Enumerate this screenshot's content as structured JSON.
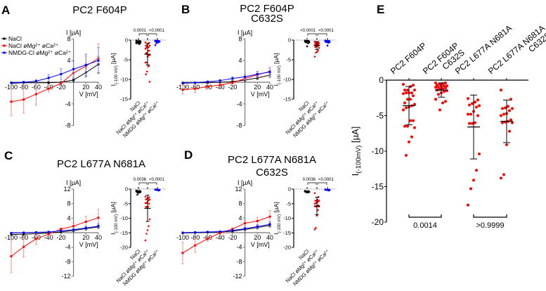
{
  "figure": {
    "panel_labels": [
      "A",
      "B",
      "C",
      "D",
      "E"
    ]
  },
  "legend": {
    "items": [
      {
        "label": "NaCl",
        "color": "#000000"
      },
      {
        "label": "NaCl øMg²⁺ øCa²⁺",
        "color": "#ff0000"
      },
      {
        "label": "NMDG-Cl øMg²⁺ øCa²⁺",
        "color": "#0000ff"
      }
    ]
  },
  "chart_data": [
    {
      "panel": "A",
      "type": "line",
      "title": [
        "PC2 F604P"
      ],
      "xlabel": "V [mV]",
      "ylabel": "I [µA]",
      "x": [
        -100,
        -80,
        -60,
        -40,
        -20,
        0,
        20,
        40
      ],
      "xlim": [
        -100,
        40
      ],
      "ylim": [
        -8,
        8
      ],
      "xticks": [
        -100,
        -80,
        -60,
        -40,
        -20,
        20,
        40
      ],
      "yticks": [
        8,
        4,
        -4,
        -8
      ],
      "series": [
        {
          "color": "#000000",
          "values": [
            -0.2,
            -0.1,
            -0.1,
            -0.1,
            0,
            0.4,
            1.8,
            3.3
          ],
          "err": [
            0.1,
            0.1,
            0.1,
            0.1,
            0.1,
            0.3,
            0.8,
            1.5
          ]
        },
        {
          "color": "#ff0000",
          "values": [
            -3.6,
            -3.2,
            -2.2,
            -1.2,
            -0.2,
            1.7,
            3.0,
            4.4
          ],
          "err": [
            2.6,
            2.5,
            2.0,
            0.6,
            0.2,
            1.0,
            1.8,
            2.7
          ]
        },
        {
          "color": "#0000ff",
          "values": [
            -0.1,
            0,
            0.2,
            0.8,
            1.5,
            2.4,
            3.2,
            4.0
          ],
          "err": [
            0.2,
            0.2,
            0.3,
            0.6,
            1.0,
            1.5,
            2.0,
            2.4
          ]
        }
      ]
    },
    {
      "panel": "A",
      "type": "scatter",
      "ylabel": "I",
      "ylabel_sub": "(-100 mV)",
      "ylabel_unit": " [µA]",
      "categories": [
        "NaCl",
        "NaCl øMg²⁺ øCa²⁺",
        "NMDG øMg²⁺ øCa²⁺"
      ],
      "ylim": [
        -15,
        0
      ],
      "yticks": [
        0,
        -5,
        -10,
        -15
      ],
      "pvalues": [
        "0.0001",
        "<0.0001"
      ],
      "groups": [
        {
          "color": "#000000",
          "mean": -0.5,
          "sd": 0.3,
          "points": [
            -0.1,
            -0.2,
            -0.3,
            -0.3,
            -0.4,
            -0.5,
            -0.5,
            -0.6,
            -0.7,
            -0.8,
            -0.9,
            -1.0
          ]
        },
        {
          "color": "#ff0000",
          "mean": -3.6,
          "sd": 2.7,
          "points": [
            -0.6,
            -0.7,
            -0.9,
            -1.4,
            -1.4,
            -1.4,
            -1.8,
            -1.8,
            -1.9,
            -2.2,
            -2.7,
            -2.7,
            -3.2,
            -3.4,
            -3.8,
            -3.9,
            -4.2,
            -5.7,
            -5.7,
            -6.5,
            -6.7,
            -8.0,
            -8.7,
            -10.6
          ]
        },
        {
          "color": "#0000ff",
          "mean": -0.4,
          "sd": 0.3,
          "points": [
            -0.1,
            -0.2,
            -0.2,
            -0.3,
            -0.3,
            -0.4,
            -0.5,
            -0.6,
            -0.8,
            -1.3
          ]
        }
      ]
    },
    {
      "panel": "B",
      "type": "line",
      "title": [
        "PC2 F604P",
        "C632S"
      ],
      "xlabel": "V [mV]",
      "ylabel": "I [µA]",
      "x": [
        -100,
        -80,
        -60,
        -40,
        -20,
        0,
        20,
        40
      ],
      "xlim": [
        -100,
        40
      ],
      "ylim": [
        -8,
        8
      ],
      "xticks": [
        -100,
        -80,
        -60,
        -40,
        -20,
        20,
        40
      ],
      "yticks": [
        8,
        4,
        -4,
        -8
      ],
      "series": [
        {
          "color": "#000000",
          "values": [
            -0.2,
            -0.1,
            -0.1,
            0,
            0.1,
            0.4,
            0.8,
            1.3
          ],
          "err": [
            0.1,
            0.1,
            0.1,
            0.1,
            0.1,
            0.2,
            0.3,
            0.4
          ]
        },
        {
          "color": "#ff0000",
          "values": [
            -1.4,
            -1.2,
            -0.8,
            -0.5,
            -0.1,
            0.7,
            1.4,
            2.0
          ],
          "err": [
            0.8,
            0.7,
            0.5,
            0.3,
            0.1,
            0.3,
            0.5,
            0.8
          ]
        },
        {
          "color": "#0000ff",
          "values": [
            -0.1,
            -0.1,
            0.1,
            0.3,
            0.7,
            1.0,
            1.5,
            1.9
          ],
          "err": [
            0.1,
            0.1,
            0.1,
            0.2,
            0.3,
            0.4,
            0.5,
            0.6
          ]
        }
      ]
    },
    {
      "panel": "B",
      "type": "scatter",
      "ylabel": "I",
      "ylabel_sub": "(-100 mV)",
      "ylabel_unit": " [µA]",
      "categories": [
        "NaCl",
        "NaCl øMg²⁺ øCa²⁺",
        "NMDG øMg²⁺ øCa²⁺"
      ],
      "ylim": [
        -15,
        0
      ],
      "yticks": [
        0,
        -5,
        -10,
        -15
      ],
      "pvalues": [
        "<0.0001",
        "<0.0001"
      ],
      "groups": [
        {
          "color": "#000000",
          "mean": -0.4,
          "sd": 0.3,
          "points": [
            -0.1,
            -0.2,
            -0.3,
            -0.4,
            -0.5,
            -0.6,
            -0.8,
            -1.6
          ]
        },
        {
          "color": "#ff0000",
          "mean": -1.4,
          "sd": 1.0,
          "points": [
            -0.4,
            -0.5,
            -0.6,
            -0.7,
            -0.8,
            -0.9,
            -1.0,
            -1.1,
            -1.2,
            -1.3,
            -1.4,
            -1.5,
            -1.6,
            -1.8,
            -2.0,
            -2.7,
            -3.0,
            -3.2,
            -4.2
          ]
        },
        {
          "color": "#0000ff",
          "mean": -0.4,
          "sd": 0.3,
          "points": [
            -0.1,
            -0.2,
            -0.3,
            -0.3,
            -0.4,
            -0.5,
            -0.7,
            -1.4
          ]
        }
      ]
    },
    {
      "panel": "C",
      "type": "line",
      "title": [
        "PC2 L677A N681A"
      ],
      "xlabel": "V [mV]",
      "ylabel": "I [µA]",
      "x": [
        -100,
        -80,
        -60,
        -40,
        -20,
        0,
        20,
        40
      ],
      "xlim": [
        -100,
        40
      ],
      "ylim": [
        -12,
        12
      ],
      "xticks": [
        -100,
        -80,
        -60,
        -40,
        -20,
        20,
        40
      ],
      "yticks": [
        12,
        8,
        4,
        -4,
        -8,
        -12
      ],
      "series": [
        {
          "color": "#000000",
          "values": [
            -0.5,
            -0.4,
            -0.3,
            -0.1,
            0.2,
            0.6,
            1.1,
            1.6
          ],
          "err": [
            0.2,
            0.2,
            0.2,
            0.2,
            0.2,
            0.3,
            0.4,
            0.5
          ]
        },
        {
          "color": "#ff0000",
          "values": [
            -6.5,
            -3.9,
            -1.7,
            -0.4,
            1.0,
            1.8,
            3.0,
            4.1
          ],
          "err": [
            4.5,
            2.8,
            1.5,
            0.5,
            0.3,
            0.8,
            1.5,
            2.3
          ]
        },
        {
          "color": "#0000ff",
          "values": [
            -0.1,
            0,
            0.1,
            0.2,
            0.5,
            0.8,
            1.3,
            1.8
          ],
          "err": [
            0.1,
            0.1,
            0.1,
            0.2,
            0.2,
            0.3,
            0.5,
            0.7
          ]
        }
      ]
    },
    {
      "panel": "C",
      "type": "scatter",
      "ylabel": "I",
      "ylabel_sub": "(-100 mV)",
      "ylabel_unit": " [µA]",
      "categories": [
        "NaCl",
        "NaCl øMg²⁺ øCa²⁺",
        "NMDG øMg²⁺ øCa²⁺"
      ],
      "ylim": [
        -20,
        0
      ],
      "yticks": [
        0,
        -5,
        -10,
        -15,
        -20
      ],
      "pvalues": [
        "0.0036",
        "<0.0001"
      ],
      "groups": [
        {
          "color": "#000000",
          "mean": -0.9,
          "sd": 0.4,
          "points": [
            -0.5,
            -0.6,
            -0.7,
            -0.8,
            -0.9,
            -1.0,
            -1.1,
            -1.3,
            -1.9
          ]
        },
        {
          "color": "#ff0000",
          "mean": -6.6,
          "sd": 4.5,
          "points": [
            -2.6,
            -2.8,
            -3.1,
            -3.3,
            -3.5,
            -3.6,
            -3.8,
            -4.4,
            -4.8,
            -4.8,
            -5.0,
            -6.0,
            -6.1,
            -6.1,
            -10.4,
            -12.7,
            -14.1,
            -15.3,
            -17.6
          ]
        },
        {
          "color": "#0000ff",
          "mean": -0.3,
          "sd": 0.1,
          "points": [
            -0.1,
            -0.2,
            -0.2,
            -0.3,
            -0.3,
            -0.4,
            -0.5
          ]
        }
      ]
    },
    {
      "panel": "D",
      "type": "line",
      "title": [
        "PC2 L677A N681A",
        "C632S"
      ],
      "xlabel": "V [mV]",
      "ylabel": "I [µA]",
      "x": [
        -100,
        -80,
        -60,
        -40,
        -20,
        0,
        20,
        40
      ],
      "xlim": [
        -100,
        40
      ],
      "ylim": [
        -12,
        12
      ],
      "xticks": [
        -100,
        -80,
        -60,
        -40,
        -20,
        20,
        40
      ],
      "yticks": [
        12,
        8,
        4,
        -4,
        -8,
        -12
      ],
      "series": [
        {
          "color": "#000000",
          "values": [
            -0.1,
            0,
            0.1,
            0.2,
            0.4,
            0.9,
            1.4,
            2.0
          ],
          "err": [
            0.1,
            0.1,
            0.1,
            0.1,
            0.2,
            0.3,
            0.4,
            0.5
          ]
        },
        {
          "color": "#ff0000",
          "values": [
            -5.6,
            -3.5,
            -1.7,
            -0.1,
            1.0,
            2.6,
            3.2,
            4.4
          ],
          "err": [
            3.0,
            1.9,
            0.6,
            0.3,
            0.3,
            0.6,
            1.0,
            1.7
          ]
        },
        {
          "color": "#0000ff",
          "values": [
            0,
            0.1,
            0.2,
            0.3,
            0.6,
            1.1,
            1.7,
            2.3
          ],
          "err": [
            0.1,
            0.1,
            0.1,
            0.1,
            0.2,
            0.3,
            0.5,
            0.7
          ]
        }
      ]
    },
    {
      "panel": "D",
      "type": "scatter",
      "ylabel": "I",
      "ylabel_sub": "(-100 mV)",
      "ylabel_unit": " [µA]",
      "categories": [
        "NaCl",
        "NaCl øMg²⁺ øCa²⁺",
        "NMDG øMg²⁺ øCa²⁺"
      ],
      "ylim": [
        -20,
        0
      ],
      "yticks": [
        0,
        -5,
        -10,
        -15,
        -20
      ],
      "pvalues": [
        "0.0036",
        "<0.0001"
      ],
      "groups": [
        {
          "color": "#000000",
          "mean": -0.9,
          "sd": 0.3,
          "points": [
            -0.6,
            -0.7,
            -0.8,
            -0.9,
            -0.9,
            -1.0,
            -1.1,
            -1.2
          ]
        },
        {
          "color": "#ff0000",
          "mean": -5.8,
          "sd": 3.0,
          "points": [
            -1.4,
            -2.7,
            -3.7,
            -3.9,
            -4.0,
            -4.0,
            -4.3,
            -4.7,
            -4.8,
            -5.0,
            -5.6,
            -5.8,
            -5.9,
            -6.0,
            -6.0,
            -7.2,
            -9.1,
            -13.3,
            -13.8
          ]
        },
        {
          "color": "#0000ff",
          "mean": -0.3,
          "sd": 0.1,
          "points": [
            -0.1,
            -0.2,
            -0.2,
            -0.3,
            -0.3,
            -0.4,
            -0.5
          ]
        }
      ]
    },
    {
      "panel": "E",
      "type": "scatter",
      "ylabel": "I",
      "ylabel_sub": "(-100mV)",
      "ylabel_unit": " [µA]",
      "categories": [
        [
          "PC2 F604P"
        ],
        [
          "PC2 F604P",
          "C632S"
        ],
        [
          "PC2 L677A N681A"
        ],
        [
          "PC2 L677A N681A",
          "C632S"
        ]
      ],
      "ylim": [
        -20,
        0
      ],
      "yticks": [
        0,
        -5,
        -10,
        -15,
        -20
      ],
      "comparisons": [
        {
          "pair": [
            0,
            1
          ],
          "pvalue": "0.0014"
        },
        {
          "pair": [
            2,
            3
          ],
          "pvalue": ">0.9999"
        }
      ],
      "groups": [
        {
          "color": "#ff0000",
          "mean": -3.6,
          "sd": 2.7,
          "points": [
            -0.6,
            -0.7,
            -0.9,
            -1.4,
            -1.4,
            -1.4,
            -1.8,
            -1.8,
            -1.8,
            -1.9,
            -2.2,
            -2.7,
            -2.7,
            -3.2,
            -3.4,
            -3.6,
            -3.8,
            -3.9,
            -4.2,
            -5.7,
            -5.7,
            -6.5,
            -6.5,
            -6.7,
            -8.0,
            -8.7,
            -10.6
          ]
        },
        {
          "color": "#ff0000",
          "mean": -1.4,
          "sd": 1.0,
          "points": [
            -0.4,
            -0.4,
            -0.5,
            -0.6,
            -0.7,
            -0.8,
            -0.8,
            -0.9,
            -1.0,
            -1.0,
            -1.1,
            -1.2,
            -1.3,
            -1.4,
            -1.5,
            -1.6,
            -1.8,
            -2.0,
            -2.7,
            -3.0,
            -3.2,
            -4.2
          ]
        },
        {
          "color": "#ff0000",
          "mean": -6.6,
          "sd": 4.5,
          "points": [
            -2.6,
            -2.8,
            -3.1,
            -3.3,
            -3.5,
            -3.6,
            -3.8,
            -4.4,
            -4.8,
            -4.8,
            -5.0,
            -6.0,
            -6.1,
            -6.1,
            -10.4,
            -12.7,
            -14.1,
            -15.3,
            -17.6
          ]
        },
        {
          "color": "#ff0000",
          "mean": -5.8,
          "sd": 3.0,
          "points": [
            -1.4,
            -2.7,
            -3.7,
            -3.9,
            -4.0,
            -4.0,
            -4.3,
            -4.7,
            -4.8,
            -5.0,
            -5.6,
            -5.8,
            -5.9,
            -6.0,
            -6.0,
            -7.2,
            -9.1,
            -13.3,
            -13.8
          ]
        }
      ]
    }
  ]
}
